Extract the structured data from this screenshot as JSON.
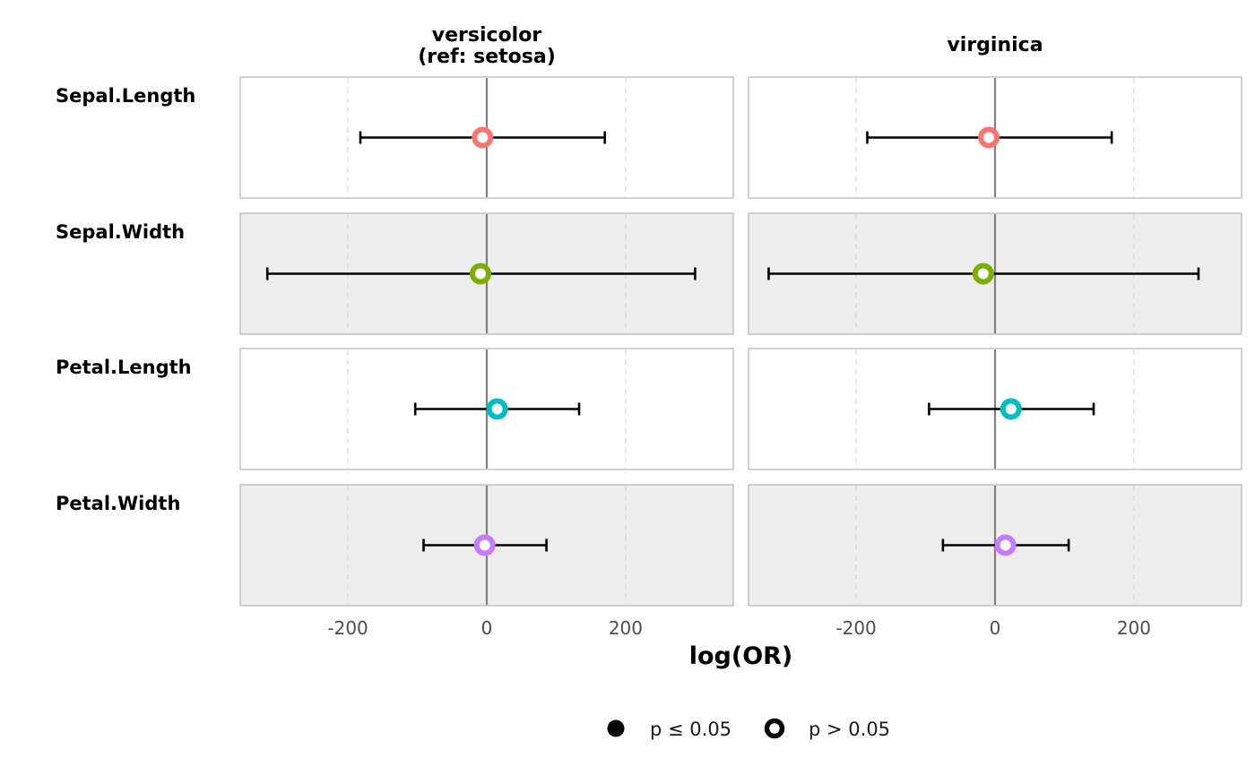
{
  "chart_data": {
    "type": "forest",
    "xlabel": "log(OR)",
    "xlim": [
      -355,
      355
    ],
    "xticks": [
      -200,
      0,
      200
    ],
    "xtick_labels": [
      "-200",
      "0",
      "200"
    ],
    "reference_line": 0,
    "grid": true,
    "columns": [
      {
        "key": "versicolor",
        "title_lines": [
          "versicolor",
          "(ref: setosa)"
        ]
      },
      {
        "key": "virginica",
        "title_lines": [
          "virginica"
        ]
      }
    ],
    "rows": [
      {
        "label": "Sepal.Length",
        "color": "#F8766D"
      },
      {
        "label": "Sepal.Width",
        "color": "#7CAE00"
      },
      {
        "label": "Petal.Length",
        "color": "#00BFC4"
      },
      {
        "label": "Petal.Width",
        "color": "#C77CFF"
      }
    ],
    "estimates": {
      "versicolor": [
        {
          "estimate": -6,
          "lower": -182,
          "upper": 170,
          "significant": false
        },
        {
          "estimate": -9,
          "lower": -316,
          "upper": 300,
          "significant": false
        },
        {
          "estimate": 15,
          "lower": -103,
          "upper": 133,
          "significant": false
        },
        {
          "estimate": -3,
          "lower": -91,
          "upper": 86,
          "significant": false
        }
      ],
      "virginica": [
        {
          "estimate": -9,
          "lower": -184,
          "upper": 168,
          "significant": false
        },
        {
          "estimate": -17,
          "lower": -326,
          "upper": 293,
          "significant": false
        },
        {
          "estimate": 23,
          "lower": -95,
          "upper": 142,
          "significant": false
        },
        {
          "estimate": 15,
          "lower": -75,
          "upper": 106,
          "significant": false
        }
      ]
    },
    "legend": {
      "position": "bottom",
      "items": [
        {
          "label": "p ≤ 0.05",
          "shape": "filled"
        },
        {
          "label": "p > 0.05",
          "shape": "hollow"
        }
      ]
    }
  }
}
